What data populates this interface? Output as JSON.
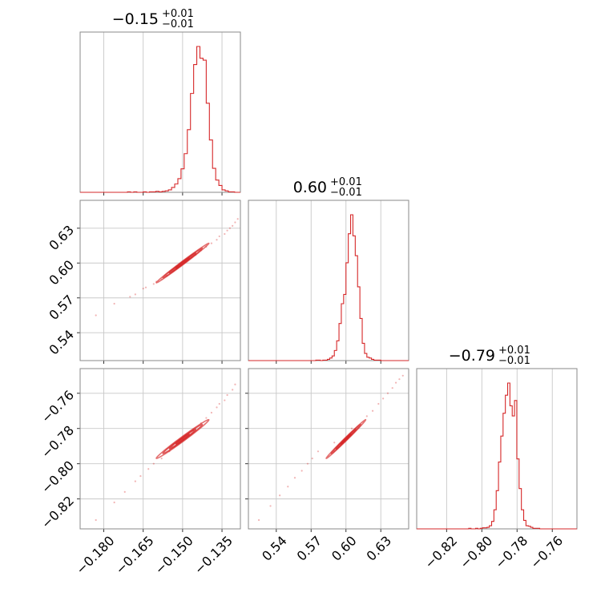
{
  "chart_data": {
    "type": "corner",
    "color": "#d62728",
    "grid": true,
    "parameters": [
      {
        "title": "−0.15",
        "title_plus": "+0.01",
        "title_minus": "−0.01",
        "median": -0.15,
        "sigma": 0.005,
        "range": [
          -0.189,
          -0.128
        ],
        "ticks": [
          -0.18,
          -0.165,
          -0.15,
          -0.135
        ],
        "tick_labels": [
          "−0.180",
          "−0.165",
          "−0.150",
          "−0.135"
        ]
      },
      {
        "title": "0.60",
        "title_plus": "+0.01",
        "title_minus": "−0.01",
        "median": 0.6,
        "sigma": 0.0085,
        "range": [
          0.516,
          0.654
        ],
        "ticks": [
          0.54,
          0.57,
          0.6,
          0.63
        ],
        "tick_labels": [
          "0.54",
          "0.57",
          "0.60",
          "0.63"
        ]
      },
      {
        "title": "−0.79",
        "title_plus": "+0.01",
        "title_minus": "−0.01",
        "median": -0.786,
        "sigma": 0.0055,
        "range": [
          -0.837,
          -0.746
        ],
        "ticks": [
          -0.82,
          -0.8,
          -0.78,
          -0.76
        ],
        "tick_labels": [
          "−0.82",
          "−0.80",
          "−0.78",
          "−0.76"
        ]
      }
    ],
    "histograms": [
      {
        "param": 0,
        "bin_width": 0.0012,
        "counts": [
          1,
          0,
          1,
          0,
          0,
          1,
          0,
          1,
          1,
          2,
          1,
          2,
          3,
          5,
          10,
          17,
          28,
          48,
          79,
          128,
          202,
          261,
          298,
          274,
          270,
          182,
          107,
          49,
          25,
          14,
          5,
          3,
          1,
          1,
          0
        ]
      },
      {
        "param": 1,
        "bin_width": 0.002,
        "counts": [
          0,
          0,
          0,
          1,
          1,
          0,
          1,
          1,
          3,
          6,
          11,
          24,
          47,
          88,
          135,
          157,
          232,
          301,
          346,
          296,
          249,
          175,
          100,
          41,
          17,
          8,
          6,
          3,
          1,
          1,
          1,
          0
        ]
      },
      {
        "param": 2,
        "bin_width": 0.0013,
        "counts": [
          1,
          0,
          0,
          1,
          0,
          1,
          2,
          2,
          3,
          6,
          14,
          36,
          72,
          126,
          175,
          218,
          252,
          275,
          232,
          213,
          242,
          132,
          76,
          36,
          16,
          6,
          5,
          3,
          1,
          1,
          1,
          0,
          0
        ]
      }
    ],
    "pairs": [
      {
        "x": 0,
        "y": 1,
        "correlation": 0.995,
        "points": [
          [
            -0.183,
            0.555
          ],
          [
            -0.176,
            0.565
          ],
          [
            -0.17,
            0.571
          ],
          [
            -0.168,
            0.573
          ],
          [
            -0.165,
            0.578
          ],
          [
            -0.164,
            0.579
          ],
          [
            -0.161,
            0.582
          ],
          [
            -0.16,
            0.584
          ],
          [
            -0.158,
            0.586
          ],
          [
            -0.156,
            0.589
          ],
          [
            -0.152,
            0.596
          ],
          [
            -0.148,
            0.603
          ],
          [
            -0.145,
            0.607
          ],
          [
            -0.143,
            0.611
          ],
          [
            -0.141,
            0.614
          ],
          [
            -0.139,
            0.617
          ],
          [
            -0.137,
            0.62
          ],
          [
            -0.136,
            0.623
          ],
          [
            -0.134,
            0.625
          ],
          [
            -0.133,
            0.628
          ],
          [
            -0.132,
            0.63
          ],
          [
            -0.131,
            0.632
          ],
          [
            -0.13,
            0.635
          ],
          [
            -0.129,
            0.638
          ]
        ]
      },
      {
        "x": 0,
        "y": 2,
        "correlation": 0.99,
        "points": [
          [
            -0.183,
            -0.832
          ],
          [
            -0.176,
            -0.822
          ],
          [
            -0.172,
            -0.816
          ],
          [
            -0.168,
            -0.81
          ],
          [
            -0.166,
            -0.807
          ],
          [
            -0.163,
            -0.803
          ],
          [
            -0.161,
            -0.8
          ],
          [
            -0.158,
            -0.797
          ],
          [
            -0.155,
            -0.793
          ],
          [
            -0.15,
            -0.786
          ],
          [
            -0.146,
            -0.781
          ],
          [
            -0.143,
            -0.777
          ],
          [
            -0.141,
            -0.774
          ],
          [
            -0.139,
            -0.771
          ],
          [
            -0.137,
            -0.768
          ],
          [
            -0.136,
            -0.766
          ],
          [
            -0.134,
            -0.764
          ],
          [
            -0.133,
            -0.761
          ],
          [
            -0.131,
            -0.758
          ],
          [
            -0.13,
            -0.755
          ]
        ]
      },
      {
        "x": 1,
        "y": 2,
        "correlation": 0.995,
        "points": [
          [
            0.525,
            -0.832
          ],
          [
            0.535,
            -0.824
          ],
          [
            0.543,
            -0.818
          ],
          [
            0.55,
            -0.813
          ],
          [
            0.556,
            -0.808
          ],
          [
            0.562,
            -0.804
          ],
          [
            0.567,
            -0.8
          ],
          [
            0.571,
            -0.797
          ],
          [
            0.576,
            -0.793
          ],
          [
            0.59,
            -0.788
          ],
          [
            0.605,
            -0.78
          ],
          [
            0.618,
            -0.773
          ],
          [
            0.623,
            -0.77
          ],
          [
            0.628,
            -0.766
          ],
          [
            0.632,
            -0.763
          ],
          [
            0.636,
            -0.76
          ],
          [
            0.64,
            -0.757
          ],
          [
            0.643,
            -0.754
          ],
          [
            0.646,
            -0.752
          ],
          [
            0.649,
            -0.75
          ]
        ]
      }
    ]
  }
}
